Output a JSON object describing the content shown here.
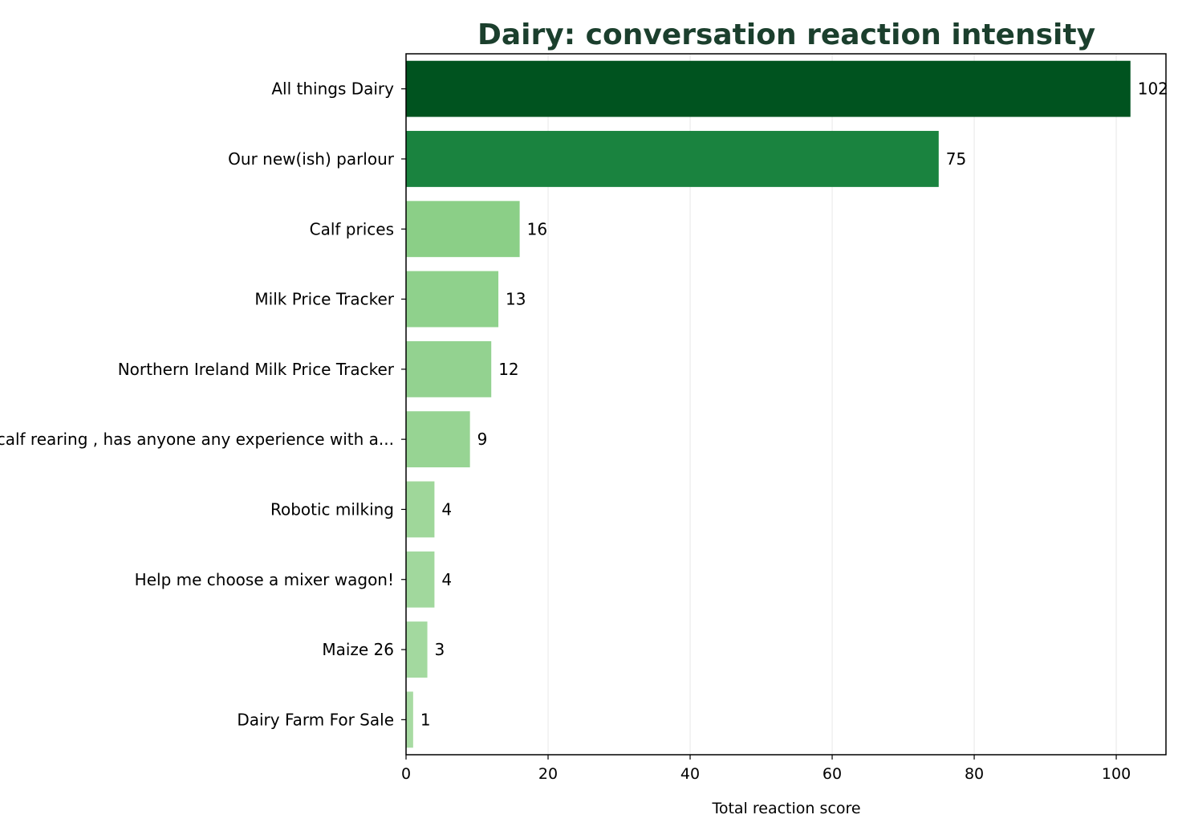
{
  "chart_data": {
    "type": "bar",
    "orientation": "horizontal",
    "title": "Dairy: conversation reaction intensity",
    "xlabel": "Total reaction score",
    "ylabel": "",
    "xlim": [
      0,
      107
    ],
    "xticks": [
      0,
      20,
      40,
      60,
      80,
      100
    ],
    "grid": "vertical",
    "legend": "none",
    "categories": [
      "All things Dairy",
      "Our new(ish) parlour",
      "Calf prices",
      "Milk Price Tracker",
      "Northern Ireland Milk Price Tracker",
      "calf rearing , has anyone any experience with a...",
      "Robotic milking",
      "Help me choose a mixer wagon!",
      "Maize 26",
      "Dairy Farm For Sale"
    ],
    "values": [
      102,
      75,
      16,
      13,
      12,
      9,
      4,
      4,
      3,
      1
    ],
    "colors": {
      "title": "#1b3f2d",
      "grid": "#ebebeb",
      "axis": "#000000",
      "bar_scale": [
        "#00531f",
        "#1a833f",
        "#8bcf87",
        "#8fd18c",
        "#93d290",
        "#97d493",
        "#9fd79a",
        "#a1d89d",
        "#a3d99f",
        "#a8dba3"
      ]
    }
  }
}
